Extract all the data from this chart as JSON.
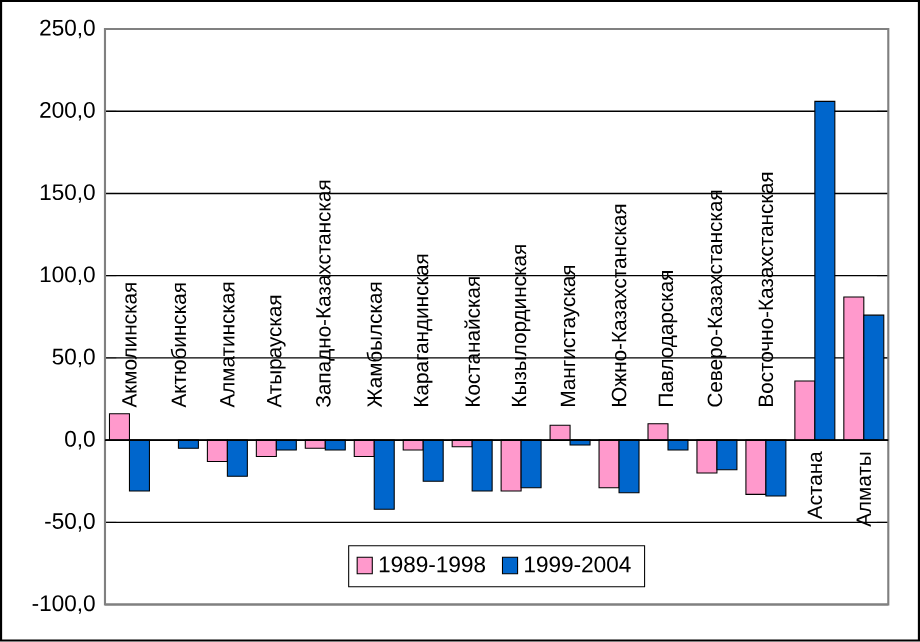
{
  "chart_data": {
    "type": "bar",
    "categories": [
      "Акмолинская",
      "Актюбинская",
      "Алматинская",
      "Атырауская",
      "Западно-Казахстанская",
      "Жамбылская",
      "Карагандинская",
      "Костанайская",
      "Кызылординская",
      "Мангистауская",
      "Южно-Казахстанская",
      "Павлодарская",
      "Северо-Казахстанская",
      "Восточно-Казахстанская",
      "Астана",
      "Алматы"
    ],
    "series": [
      {
        "name": "1989-1998",
        "color": "#ff99cc",
        "values": [
          16,
          null,
          -13,
          -10,
          -5,
          -10,
          -6,
          -4,
          -31,
          9,
          -29,
          10,
          -20,
          -33,
          36,
          87
        ]
      },
      {
        "name": "1999-2004",
        "color": "#0066cc",
        "values": [
          -31,
          -5,
          -22,
          -6,
          -6,
          -42,
          -25,
          -31,
          -29,
          -3,
          -32,
          -6,
          -18,
          -34,
          206,
          76
        ]
      }
    ],
    "ylim": [
      -100,
      250
    ],
    "yticks": [
      {
        "value": -100,
        "label": "-100,0"
      },
      {
        "value": -50,
        "label": "-50,0"
      },
      {
        "value": 0,
        "label": "0,0"
      },
      {
        "value": 50,
        "label": "50,0"
      },
      {
        "value": 100,
        "label": "100,0"
      },
      {
        "value": 150,
        "label": "150,0"
      },
      {
        "value": 200,
        "label": "200,0"
      },
      {
        "value": 250,
        "label": "250,0"
      }
    ],
    "grid": "y",
    "legend": "bottom"
  }
}
